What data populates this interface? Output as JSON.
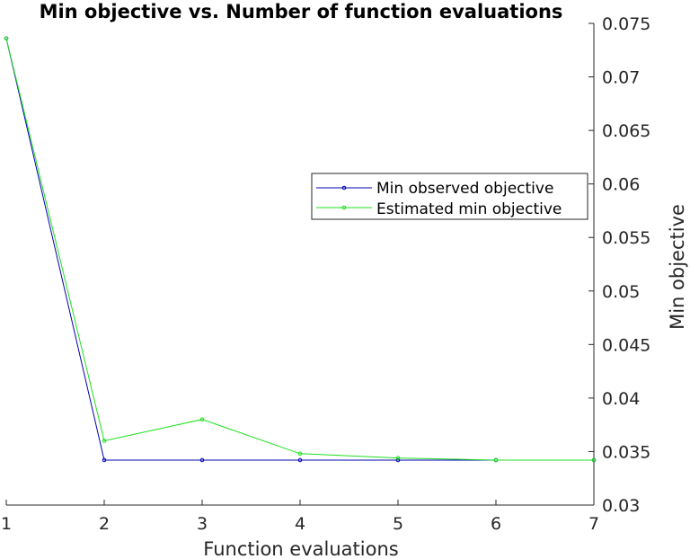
{
  "chart_data": {
    "type": "line",
    "title": "Min objective vs. Number of function evaluations",
    "xlabel": "Function evaluations",
    "ylabel": "Min objective",
    "xlim": [
      1,
      7
    ],
    "ylim": [
      0.03,
      0.075
    ],
    "xticks": [
      "1",
      "2",
      "3",
      "4",
      "5",
      "6",
      "7"
    ],
    "yticks": [
      "0.03",
      "0.035",
      "0.04",
      "0.045",
      "0.05",
      "0.055",
      "0.06",
      "0.065",
      "0.07",
      "0.075"
    ],
    "y_axis_side": "right",
    "grid": false,
    "legend_position": "center-right",
    "series": [
      {
        "name": "Min observed objective",
        "color": "#0000b3",
        "x": [
          1,
          2,
          3,
          4,
          5,
          6,
          7
        ],
        "y": [
          0.0736,
          0.0342,
          0.0342,
          0.0342,
          0.0342,
          0.0342,
          0.0342
        ]
      },
      {
        "name": "Estimated min objective",
        "color": "#1fe01f",
        "x": [
          1,
          2,
          3,
          4,
          5,
          6,
          7
        ],
        "y": [
          0.0736,
          0.036,
          0.038,
          0.0348,
          0.0344,
          0.0342,
          0.0342
        ]
      }
    ]
  }
}
